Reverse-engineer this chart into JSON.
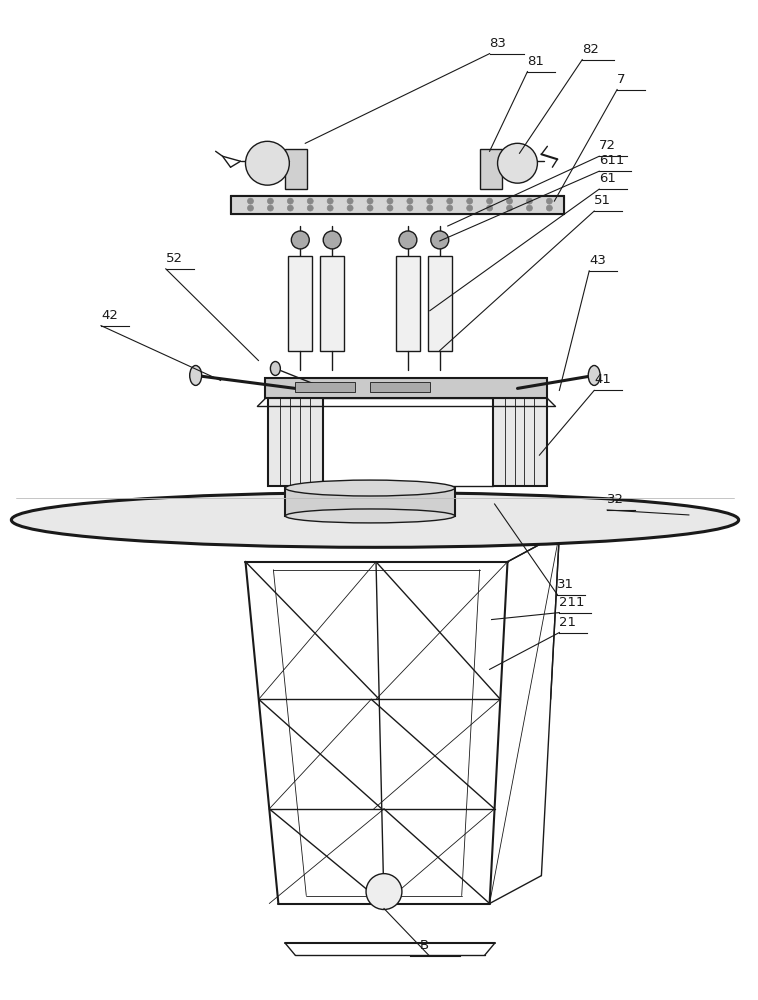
{
  "bg_color": "#ffffff",
  "lc": "#1a1a1a",
  "fig_width": 7.58,
  "fig_height": 10.0,
  "dpi": 100
}
